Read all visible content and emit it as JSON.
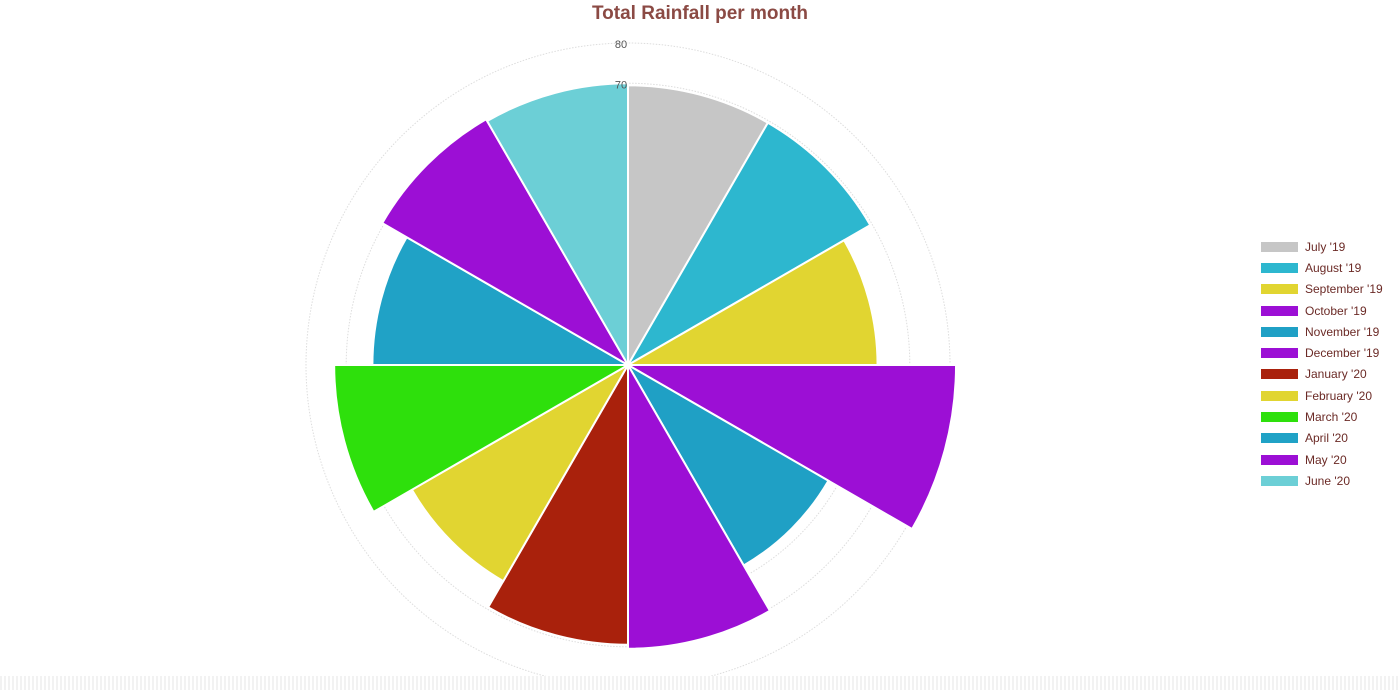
{
  "chart_data": {
    "type": "polarArea",
    "title": "Total Rainfall per month",
    "categories": [
      "July '19",
      "August '19",
      "September '19",
      "October '19",
      "November '19",
      "December '19",
      "January '20",
      "February '20",
      "March '20",
      "April '20",
      "May '20",
      "June '20"
    ],
    "values": [
      69.5,
      69.5,
      62,
      81.5,
      57.5,
      70.5,
      69.5,
      62,
      73,
      63.5,
      70.5,
      70
    ],
    "colors": [
      "#c6c6c6",
      "#2db7cf",
      "#e1d531",
      "#9c0fd5",
      "#1fa0c5",
      "#9c0fd5",
      "#a9210c",
      "#e1d531",
      "#2ee00c",
      "#20a2c6",
      "#9c0fd5",
      "#6ccfd6"
    ],
    "tick_labels": [
      "70",
      "80"
    ],
    "r_ticks": [
      20,
      30,
      40,
      50,
      60,
      70,
      80
    ],
    "r_max": 80,
    "legend_position": "right",
    "grid": true
  }
}
